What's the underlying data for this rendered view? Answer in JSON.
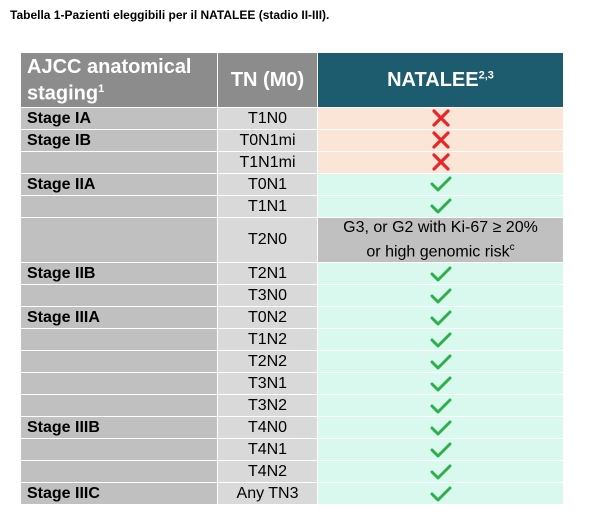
{
  "caption": "Tabella 1-Pazienti eleggibili per il NATALEE (stadio II-III).",
  "header": {
    "col1": "AJCC anatomical staging",
    "col1_sup": "1",
    "col2": "TN (M0)",
    "col3": "NATALEE",
    "col3_sup": "2,3"
  },
  "colors": {
    "no": "#e8262a",
    "yes": "#2db04b",
    "header_accent": "#1d5c6e"
  },
  "rows": [
    {
      "stage": "Stage IA",
      "tn": "T1N0",
      "status": "no",
      "icon": "cross-icon"
    },
    {
      "stage": "Stage IB",
      "tn": "T0N1mi",
      "status": "no",
      "icon": "cross-icon"
    },
    {
      "stage": "",
      "tn": "T1N1mi",
      "status": "no",
      "icon": "cross-icon"
    },
    {
      "stage": "Stage IIA",
      "tn": "T0N1",
      "status": "yes",
      "icon": "check-icon"
    },
    {
      "stage": "",
      "tn": "T1N1",
      "status": "yes",
      "icon": "check-icon"
    },
    {
      "stage": "",
      "tn": "T2N0",
      "status": "text",
      "note_line1": "G3, or G2 with Ki-67 ≥ 20%",
      "note_line2": "or high genomic risk",
      "note_sup": "c"
    },
    {
      "stage": "Stage IIB",
      "tn": "T2N1",
      "status": "yes",
      "icon": "check-icon"
    },
    {
      "stage": "",
      "tn": "T3N0",
      "status": "yes",
      "icon": "check-icon"
    },
    {
      "stage": "Stage IIIA",
      "tn": "T0N2",
      "status": "yes",
      "icon": "check-icon"
    },
    {
      "stage": "",
      "tn": "T1N2",
      "status": "yes",
      "icon": "check-icon"
    },
    {
      "stage": "",
      "tn": "T2N2",
      "status": "yes",
      "icon": "check-icon"
    },
    {
      "stage": "",
      "tn": "T3N1",
      "status": "yes",
      "icon": "check-icon"
    },
    {
      "stage": "",
      "tn": "T3N2",
      "status": "yes",
      "icon": "check-icon"
    },
    {
      "stage": "Stage IIIB",
      "tn": "T4N0",
      "status": "yes",
      "icon": "check-icon"
    },
    {
      "stage": "",
      "tn": "T4N1",
      "status": "yes",
      "icon": "check-icon"
    },
    {
      "stage": "",
      "tn": "T4N2",
      "status": "yes",
      "icon": "check-icon"
    },
    {
      "stage": "Stage IIIC",
      "tn": "Any TN3",
      "status": "yes",
      "icon": "check-icon"
    }
  ]
}
